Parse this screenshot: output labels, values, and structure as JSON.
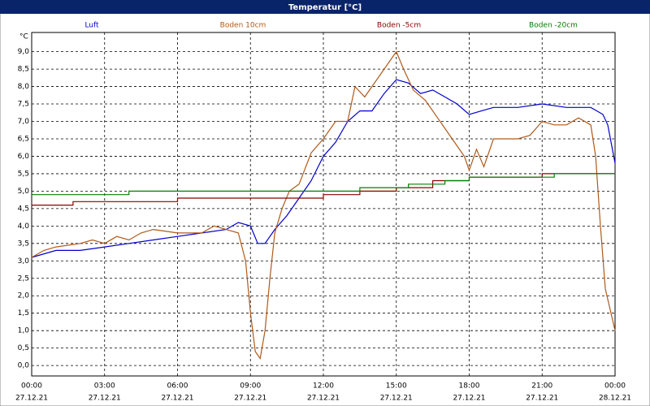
{
  "chart_data": {
    "type": "line",
    "title": "Temperatur [°C]",
    "y_unit": "°C",
    "xlim": [
      0,
      24
    ],
    "ylim": [
      -0.3,
      9.55
    ],
    "grid": true,
    "xticks": [
      {
        "value": 0,
        "label": "00:00",
        "date": "27.12.21"
      },
      {
        "value": 3,
        "label": "03:00",
        "date": "27.12.21"
      },
      {
        "value": 6,
        "label": "06:00",
        "date": "27.12.21"
      },
      {
        "value": 9,
        "label": "09:00",
        "date": "27.12.21"
      },
      {
        "value": 12,
        "label": "12:00",
        "date": "27.12.21"
      },
      {
        "value": 15,
        "label": "15:00",
        "date": "27.12.21"
      },
      {
        "value": 18,
        "label": "18:00",
        "date": "27.12.21"
      },
      {
        "value": 21,
        "label": "21:00",
        "date": "27.12.21"
      },
      {
        "value": 24,
        "label": "00:00",
        "date": "28.12.21"
      }
    ],
    "yticks": [
      {
        "value": 0,
        "label": "0,0"
      },
      {
        "value": 0.5,
        "label": "0,5"
      },
      {
        "value": 1,
        "label": "1,0"
      },
      {
        "value": 1.5,
        "label": "1,5"
      },
      {
        "value": 2,
        "label": "2,0"
      },
      {
        "value": 2.5,
        "label": "2,5"
      },
      {
        "value": 3,
        "label": "3,0"
      },
      {
        "value": 3.5,
        "label": "3,5"
      },
      {
        "value": 4,
        "label": "4,0"
      },
      {
        "value": 4.5,
        "label": "4,5"
      },
      {
        "value": 5,
        "label": "5,0"
      },
      {
        "value": 5.5,
        "label": "5,5"
      },
      {
        "value": 6,
        "label": "6,0"
      },
      {
        "value": 6.5,
        "label": "6,5"
      },
      {
        "value": 7,
        "label": "7,0"
      },
      {
        "value": 7.5,
        "label": "7,5"
      },
      {
        "value": 8,
        "label": "8,0"
      },
      {
        "value": 8.5,
        "label": "8,5"
      },
      {
        "value": 9,
        "label": "9,0"
      }
    ],
    "series": [
      {
        "name": "Luft",
        "color": "#0000cc",
        "x": [
          0,
          1,
          2,
          3,
          4,
          5,
          6,
          7,
          8,
          8.5,
          9,
          9.3,
          9.6,
          10,
          10.5,
          11,
          11.5,
          12,
          12.5,
          13,
          13.5,
          14,
          14.5,
          15,
          15.5,
          16,
          16.5,
          17,
          17.5,
          18,
          18.5,
          19,
          20,
          21,
          22,
          23,
          23.5,
          23.7,
          24
        ],
        "values": [
          3.1,
          3.3,
          3.3,
          3.4,
          3.5,
          3.6,
          3.7,
          3.8,
          3.9,
          4.1,
          4.0,
          3.5,
          3.5,
          3.9,
          4.3,
          4.8,
          5.3,
          6.0,
          6.4,
          7.0,
          7.3,
          7.3,
          7.8,
          8.2,
          8.1,
          7.8,
          7.9,
          7.7,
          7.5,
          7.2,
          7.3,
          7.4,
          7.4,
          7.5,
          7.4,
          7.4,
          7.2,
          6.9,
          5.8
        ]
      },
      {
        "name": "Boden 10cm",
        "color": "#b05a1a",
        "x": [
          0,
          0.5,
          1,
          2,
          2.5,
          3,
          3.5,
          4,
          4.5,
          5,
          6,
          7,
          7.5,
          8,
          8.5,
          8.8,
          9,
          9.2,
          9.4,
          9.6,
          9.8,
          10,
          10.3,
          10.6,
          11,
          11.5,
          12,
          12.5,
          13,
          13.3,
          13.7,
          14,
          14.5,
          15,
          15.3,
          15.7,
          16.2,
          16.7,
          17,
          17.5,
          17.8,
          18,
          18.3,
          18.6,
          19,
          19.5,
          20,
          20.5,
          21,
          21.5,
          22,
          22.5,
          23,
          23.2,
          23.4,
          23.6,
          24
        ],
        "values": [
          3.1,
          3.3,
          3.4,
          3.5,
          3.6,
          3.5,
          3.7,
          3.6,
          3.8,
          3.9,
          3.8,
          3.8,
          4.0,
          3.9,
          3.8,
          3.0,
          1.5,
          0.4,
          0.2,
          1.0,
          2.5,
          3.8,
          4.5,
          5.0,
          5.2,
          6.1,
          6.5,
          7.0,
          7.0,
          8.0,
          7.7,
          8.0,
          8.5,
          9.0,
          8.5,
          7.9,
          7.6,
          7.1,
          6.8,
          6.3,
          6.0,
          5.6,
          6.2,
          5.7,
          6.5,
          6.5,
          6.5,
          6.6,
          7.0,
          6.9,
          6.9,
          7.1,
          6.9,
          6.0,
          4.0,
          2.2,
          1.0
        ]
      },
      {
        "name": "Boden -5cm",
        "color": "#8b0000",
        "x": [
          0,
          1.7,
          1.7,
          6,
          6,
          12,
          12,
          13.5,
          13.5,
          15,
          15,
          16.5,
          16.5,
          18,
          18,
          21,
          21,
          24
        ],
        "values": [
          4.6,
          4.6,
          4.7,
          4.7,
          4.8,
          4.8,
          4.9,
          4.9,
          5.0,
          5.0,
          5.1,
          5.1,
          5.3,
          5.3,
          5.4,
          5.4,
          5.5,
          5.5
        ]
      },
      {
        "name": "Boden -20cm",
        "color": "#008000",
        "x": [
          0,
          4,
          4,
          13.5,
          13.5,
          15.5,
          15.5,
          17,
          17,
          18,
          18,
          21.5,
          21.5,
          24
        ],
        "values": [
          4.9,
          4.9,
          5.0,
          5.0,
          5.1,
          5.1,
          5.2,
          5.2,
          5.3,
          5.3,
          5.4,
          5.4,
          5.5,
          5.5
        ]
      }
    ]
  }
}
